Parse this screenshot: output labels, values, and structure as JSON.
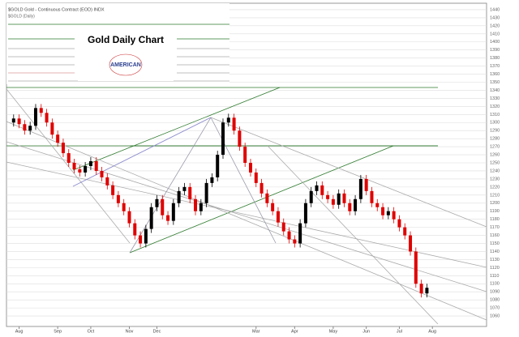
{
  "chart_data": {
    "type": "candlestick",
    "header": "$GOLD Gold - Continuous Contract (EOD) INDX",
    "subheader": "$GOLD (Daily)",
    "title": "Gold Daily Chart",
    "logo_text": "AMERICAN",
    "up_color": "#000000",
    "down_color": "#e00000",
    "open": [
      1300,
      1305,
      1298,
      1290,
      1296,
      1318,
      1312,
      1300,
      1285,
      1275,
      1262,
      1250,
      1242,
      1238,
      1246,
      1252,
      1240,
      1232,
      1222,
      1210,
      1200,
      1190,
      1175,
      1160,
      1150,
      1168,
      1195,
      1205,
      1185,
      1178,
      1200,
      1215,
      1220,
      1205,
      1190,
      1200,
      1225,
      1232,
      1260,
      1300,
      1306,
      1290,
      1270,
      1250,
      1238,
      1225,
      1212,
      1200,
      1190,
      1176,
      1165,
      1155,
      1150,
      1175,
      1200,
      1215,
      1222,
      1210,
      1205,
      1198,
      1212,
      1200,
      1190,
      1205,
      1230,
      1215,
      1200,
      1195,
      1185,
      1190,
      1180,
      1170,
      1160,
      1140,
      1100,
      1088
    ],
    "high": [
      1310,
      1310,
      1303,
      1301,
      1323,
      1323,
      1317,
      1305,
      1290,
      1280,
      1267,
      1255,
      1247,
      1251,
      1257,
      1257,
      1245,
      1237,
      1227,
      1215,
      1205,
      1195,
      1180,
      1165,
      1173,
      1200,
      1210,
      1210,
      1190,
      1205,
      1220,
      1225,
      1225,
      1210,
      1205,
      1230,
      1237,
      1265,
      1305,
      1311,
      1311,
      1295,
      1275,
      1255,
      1243,
      1230,
      1217,
      1205,
      1195,
      1181,
      1170,
      1160,
      1180,
      1205,
      1220,
      1227,
      1227,
      1215,
      1210,
      1217,
      1217,
      1205,
      1210,
      1235,
      1235,
      1220,
      1205,
      1200,
      1195,
      1195,
      1185,
      1175,
      1165,
      1145,
      1105,
      1100
    ],
    "low": [
      1295,
      1293,
      1285,
      1285,
      1291,
      1307,
      1295,
      1280,
      1270,
      1257,
      1245,
      1237,
      1233,
      1233,
      1241,
      1235,
      1227,
      1217,
      1205,
      1195,
      1185,
      1170,
      1155,
      1145,
      1145,
      1163,
      1190,
      1180,
      1173,
      1173,
      1195,
      1210,
      1200,
      1185,
      1185,
      1195,
      1220,
      1227,
      1255,
      1295,
      1285,
      1265,
      1245,
      1233,
      1220,
      1207,
      1195,
      1185,
      1171,
      1160,
      1150,
      1145,
      1145,
      1170,
      1195,
      1210,
      1205,
      1200,
      1193,
      1193,
      1195,
      1185,
      1185,
      1200,
      1210,
      1195,
      1190,
      1180,
      1180,
      1175,
      1165,
      1155,
      1135,
      1095,
      1083,
      1083
    ],
    "close": [
      1305,
      1298,
      1290,
      1296,
      1318,
      1312,
      1300,
      1285,
      1275,
      1262,
      1250,
      1242,
      1238,
      1246,
      1252,
      1240,
      1232,
      1222,
      1210,
      1200,
      1190,
      1175,
      1160,
      1150,
      1168,
      1195,
      1205,
      1185,
      1178,
      1200,
      1215,
      1220,
      1205,
      1190,
      1200,
      1225,
      1232,
      1260,
      1300,
      1306,
      1290,
      1270,
      1250,
      1238,
      1225,
      1212,
      1200,
      1190,
      1176,
      1165,
      1155,
      1150,
      1175,
      1200,
      1215,
      1222,
      1210,
      1205,
      1198,
      1212,
      1200,
      1190,
      1205,
      1230,
      1215,
      1200,
      1195,
      1185,
      1190,
      1180,
      1170,
      1160,
      1140,
      1100,
      1088,
      1095
    ],
    "xlim": [
      -1,
      77
    ],
    "xticks": [
      {
        "value": 1,
        "label": "Aug"
      },
      {
        "value": 8,
        "label": "Sep"
      },
      {
        "value": 14,
        "label": "Oct"
      },
      {
        "value": 21,
        "label": "Nov"
      },
      {
        "value": 26,
        "label": "Dec"
      },
      {
        "value": 44,
        "label": "Mar"
      },
      {
        "value": 51,
        "label": "Apr"
      },
      {
        "value": 58,
        "label": "May"
      },
      {
        "value": 64,
        "label": "Jun"
      },
      {
        "value": 70,
        "label": "Jul"
      },
      {
        "value": 76,
        "label": "Aug"
      }
    ],
    "ylim": [
      1047,
      1448
    ],
    "yticks": [
      1060,
      1070,
      1080,
      1090,
      1100,
      1110,
      1120,
      1130,
      1140,
      1150,
      1160,
      1170,
      1180,
      1190,
      1200,
      1210,
      1220,
      1230,
      1240,
      1250,
      1260,
      1270,
      1280,
      1290,
      1300,
      1310,
      1320,
      1330,
      1340,
      1350,
      1360,
      1370,
      1380,
      1390,
      1400,
      1410,
      1420,
      1430,
      1440
    ],
    "grid": true
  }
}
